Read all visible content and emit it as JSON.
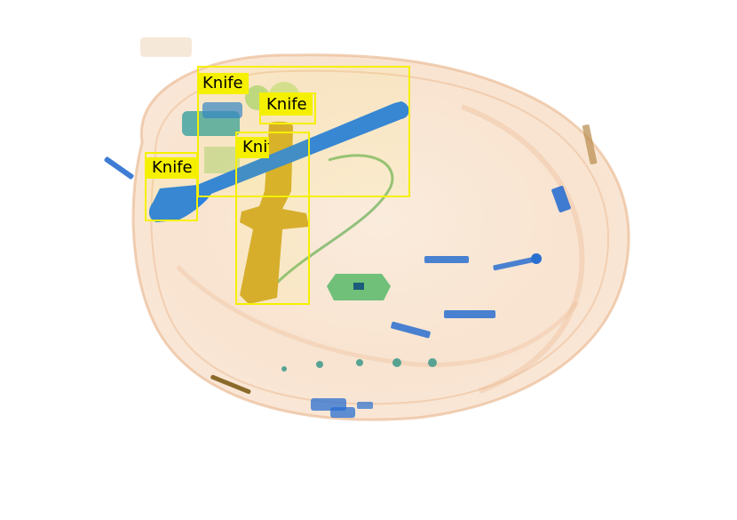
{
  "image": {
    "kind": "x-ray baggage scan with prohibited-item detections",
    "background_color": "#ffffff"
  },
  "detections": [
    {
      "label": "Knife",
      "color": "#f5f000"
    },
    {
      "label": "Knife",
      "color": "#f5f000"
    },
    {
      "label": "Knife",
      "color": "#f5f000"
    },
    {
      "label": "Knife",
      "color": "#f5f000"
    }
  ],
  "masks": [
    {
      "name": "long-blade-mask",
      "color": "#2b80e0"
    },
    {
      "name": "dagger-mask",
      "color": "#d4a92e"
    }
  ]
}
